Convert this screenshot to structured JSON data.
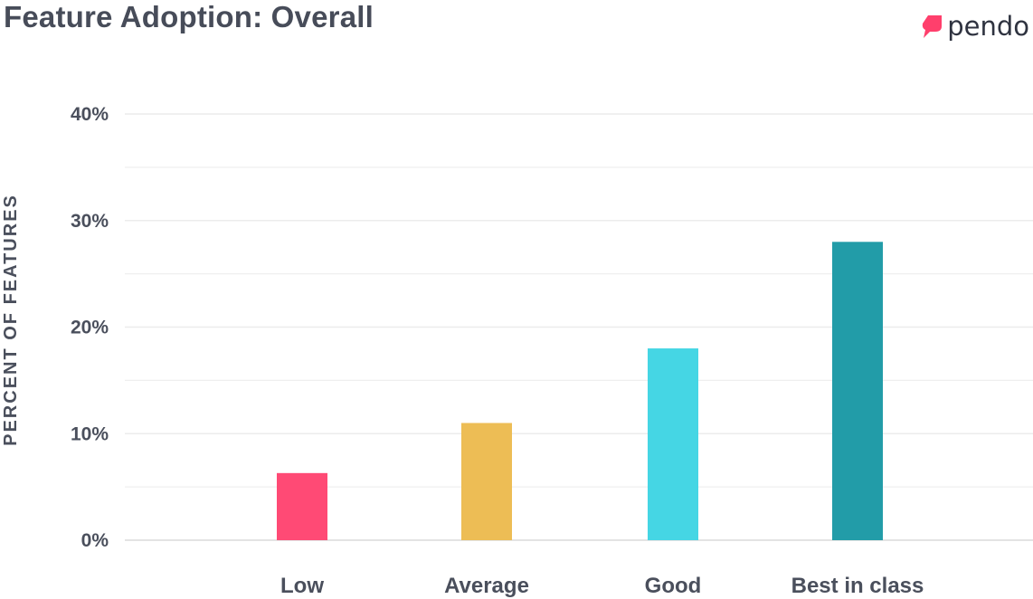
{
  "header": {
    "title": "Feature Adoption: Overall",
    "logo_text": "pendo",
    "logo_icon": "pendo-logo-icon",
    "logo_color": "#ff3f6c"
  },
  "chart_data": {
    "type": "bar",
    "title": "Feature Adoption: Overall",
    "xlabel": "",
    "ylabel": "PERCENT OF FEATURES",
    "categories": [
      "Low",
      "Average",
      "Good",
      "Best in class"
    ],
    "values": [
      6.3,
      11,
      18,
      28
    ],
    "colors": [
      "#ff4a75",
      "#edbd55",
      "#45d6e4",
      "#229ca8"
    ],
    "ylim": [
      0,
      40
    ],
    "yticks": [
      0,
      10,
      20,
      30,
      40
    ],
    "ytick_labels": [
      "0%",
      "10%",
      "20%",
      "30%",
      "40%"
    ],
    "minor_gridlines": [
      5,
      15,
      25,
      35
    ],
    "grid": true,
    "legend": "none"
  }
}
